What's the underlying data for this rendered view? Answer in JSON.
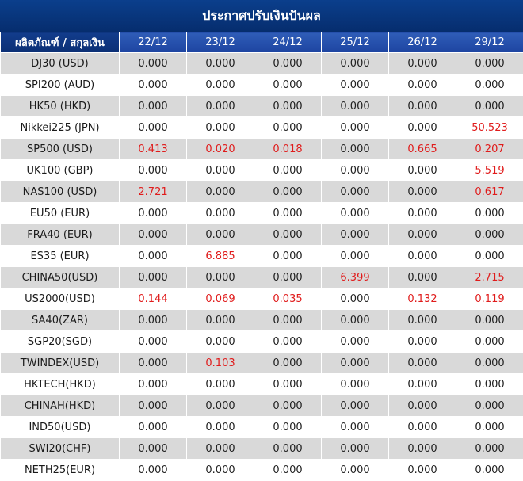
{
  "title": "ประกาศปรับเงินปันผล",
  "header": {
    "product": "ผลิตภัณฑ์ / สกุลเงิน",
    "dates": [
      "22/12",
      "23/12",
      "24/12",
      "25/12",
      "26/12",
      "29/12"
    ]
  },
  "rows": [
    {
      "product": "DJ30 (USD)",
      "values": [
        "0.000",
        "0.000",
        "0.000",
        "0.000",
        "0.000",
        "0.000"
      ]
    },
    {
      "product": "SPI200 (AUD)",
      "values": [
        "0.000",
        "0.000",
        "0.000",
        "0.000",
        "0.000",
        "0.000"
      ]
    },
    {
      "product": "HK50 (HKD)",
      "values": [
        "0.000",
        "0.000",
        "0.000",
        "0.000",
        "0.000",
        "0.000"
      ]
    },
    {
      "product": "Nikkei225 (JPN)",
      "values": [
        "0.000",
        "0.000",
        "0.000",
        "0.000",
        "0.000",
        "50.523"
      ]
    },
    {
      "product": "SP500 (USD)",
      "values": [
        "0.413",
        "0.020",
        "0.018",
        "0.000",
        "0.665",
        "0.207"
      ]
    },
    {
      "product": "UK100 (GBP)",
      "values": [
        "0.000",
        "0.000",
        "0.000",
        "0.000",
        "0.000",
        "5.519"
      ]
    },
    {
      "product": "NAS100 (USD)",
      "values": [
        "2.721",
        "0.000",
        "0.000",
        "0.000",
        "0.000",
        "0.617"
      ]
    },
    {
      "product": "EU50 (EUR)",
      "values": [
        "0.000",
        "0.000",
        "0.000",
        "0.000",
        "0.000",
        "0.000"
      ]
    },
    {
      "product": "FRA40 (EUR)",
      "values": [
        "0.000",
        "0.000",
        "0.000",
        "0.000",
        "0.000",
        "0.000"
      ]
    },
    {
      "product": "ES35 (EUR)",
      "values": [
        "0.000",
        "6.885",
        "0.000",
        "0.000",
        "0.000",
        "0.000"
      ]
    },
    {
      "product": "CHINA50(USD)",
      "values": [
        "0.000",
        "0.000",
        "0.000",
        "6.399",
        "0.000",
        "2.715"
      ]
    },
    {
      "product": "US2000(USD)",
      "values": [
        "0.144",
        "0.069",
        "0.035",
        "0.000",
        "0.132",
        "0.119"
      ]
    },
    {
      "product": "SA40(ZAR)",
      "values": [
        "0.000",
        "0.000",
        "0.000",
        "0.000",
        "0.000",
        "0.000"
      ]
    },
    {
      "product": "SGP20(SGD)",
      "values": [
        "0.000",
        "0.000",
        "0.000",
        "0.000",
        "0.000",
        "0.000"
      ]
    },
    {
      "product": "TWINDEX(USD)",
      "values": [
        "0.000",
        "0.103",
        "0.000",
        "0.000",
        "0.000",
        "0.000"
      ]
    },
    {
      "product": "HKTECH(HKD)",
      "values": [
        "0.000",
        "0.000",
        "0.000",
        "0.000",
        "0.000",
        "0.000"
      ]
    },
    {
      "product": "CHINAH(HKD)",
      "values": [
        "0.000",
        "0.000",
        "0.000",
        "0.000",
        "0.000",
        "0.000"
      ]
    },
    {
      "product": "IND50(USD)",
      "values": [
        "0.000",
        "0.000",
        "0.000",
        "0.000",
        "0.000",
        "0.000"
      ]
    },
    {
      "product": "SWI20(CHF)",
      "values": [
        "0.000",
        "0.000",
        "0.000",
        "0.000",
        "0.000",
        "0.000"
      ]
    },
    {
      "product": "NETH25(EUR)",
      "values": [
        "0.000",
        "0.000",
        "0.000",
        "0.000",
        "0.000",
        "0.000"
      ]
    }
  ],
  "colors": {
    "title_bg": "#062d6e",
    "header_bg": "#1d44a0",
    "row_alt_bg": "#d9d9d9",
    "highlight_text": "#e01b1b"
  }
}
